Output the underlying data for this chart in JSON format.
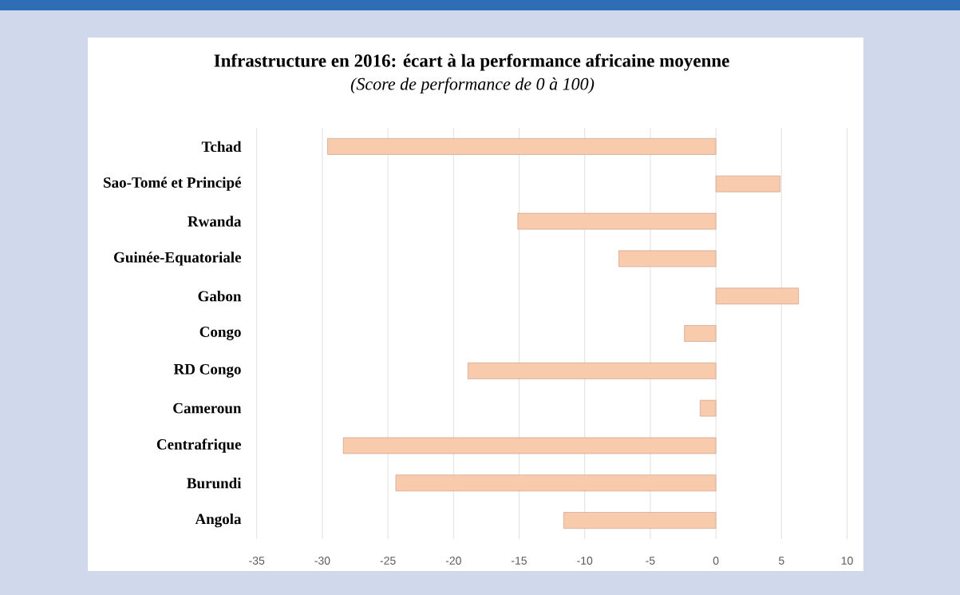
{
  "chart_data": {
    "type": "bar",
    "orientation": "horizontal",
    "title": "Infrastructure en 2016: écart à la performance africaine moyenne",
    "subtitle": "(Score de performance de 0 à 100)",
    "categories": [
      "Tchad",
      "Sao-Tomé et Principé",
      "Rwanda",
      "Guinée-Equatoriale",
      "Gabon",
      "Congo",
      "RD Congo",
      "Cameroun",
      "Centrafrique",
      "Burundi",
      "Angola"
    ],
    "values": [
      -29.6,
      4.9,
      -15.1,
      -7.4,
      6.3,
      -2.4,
      -18.9,
      -1.2,
      -28.4,
      -24.4,
      -11.6
    ],
    "color": "#f8cbad",
    "xlim": [
      -35,
      10
    ],
    "xticks": [
      -35,
      -30,
      -25,
      -20,
      -15,
      -10,
      -5,
      0,
      5,
      10
    ],
    "grid": "x"
  }
}
